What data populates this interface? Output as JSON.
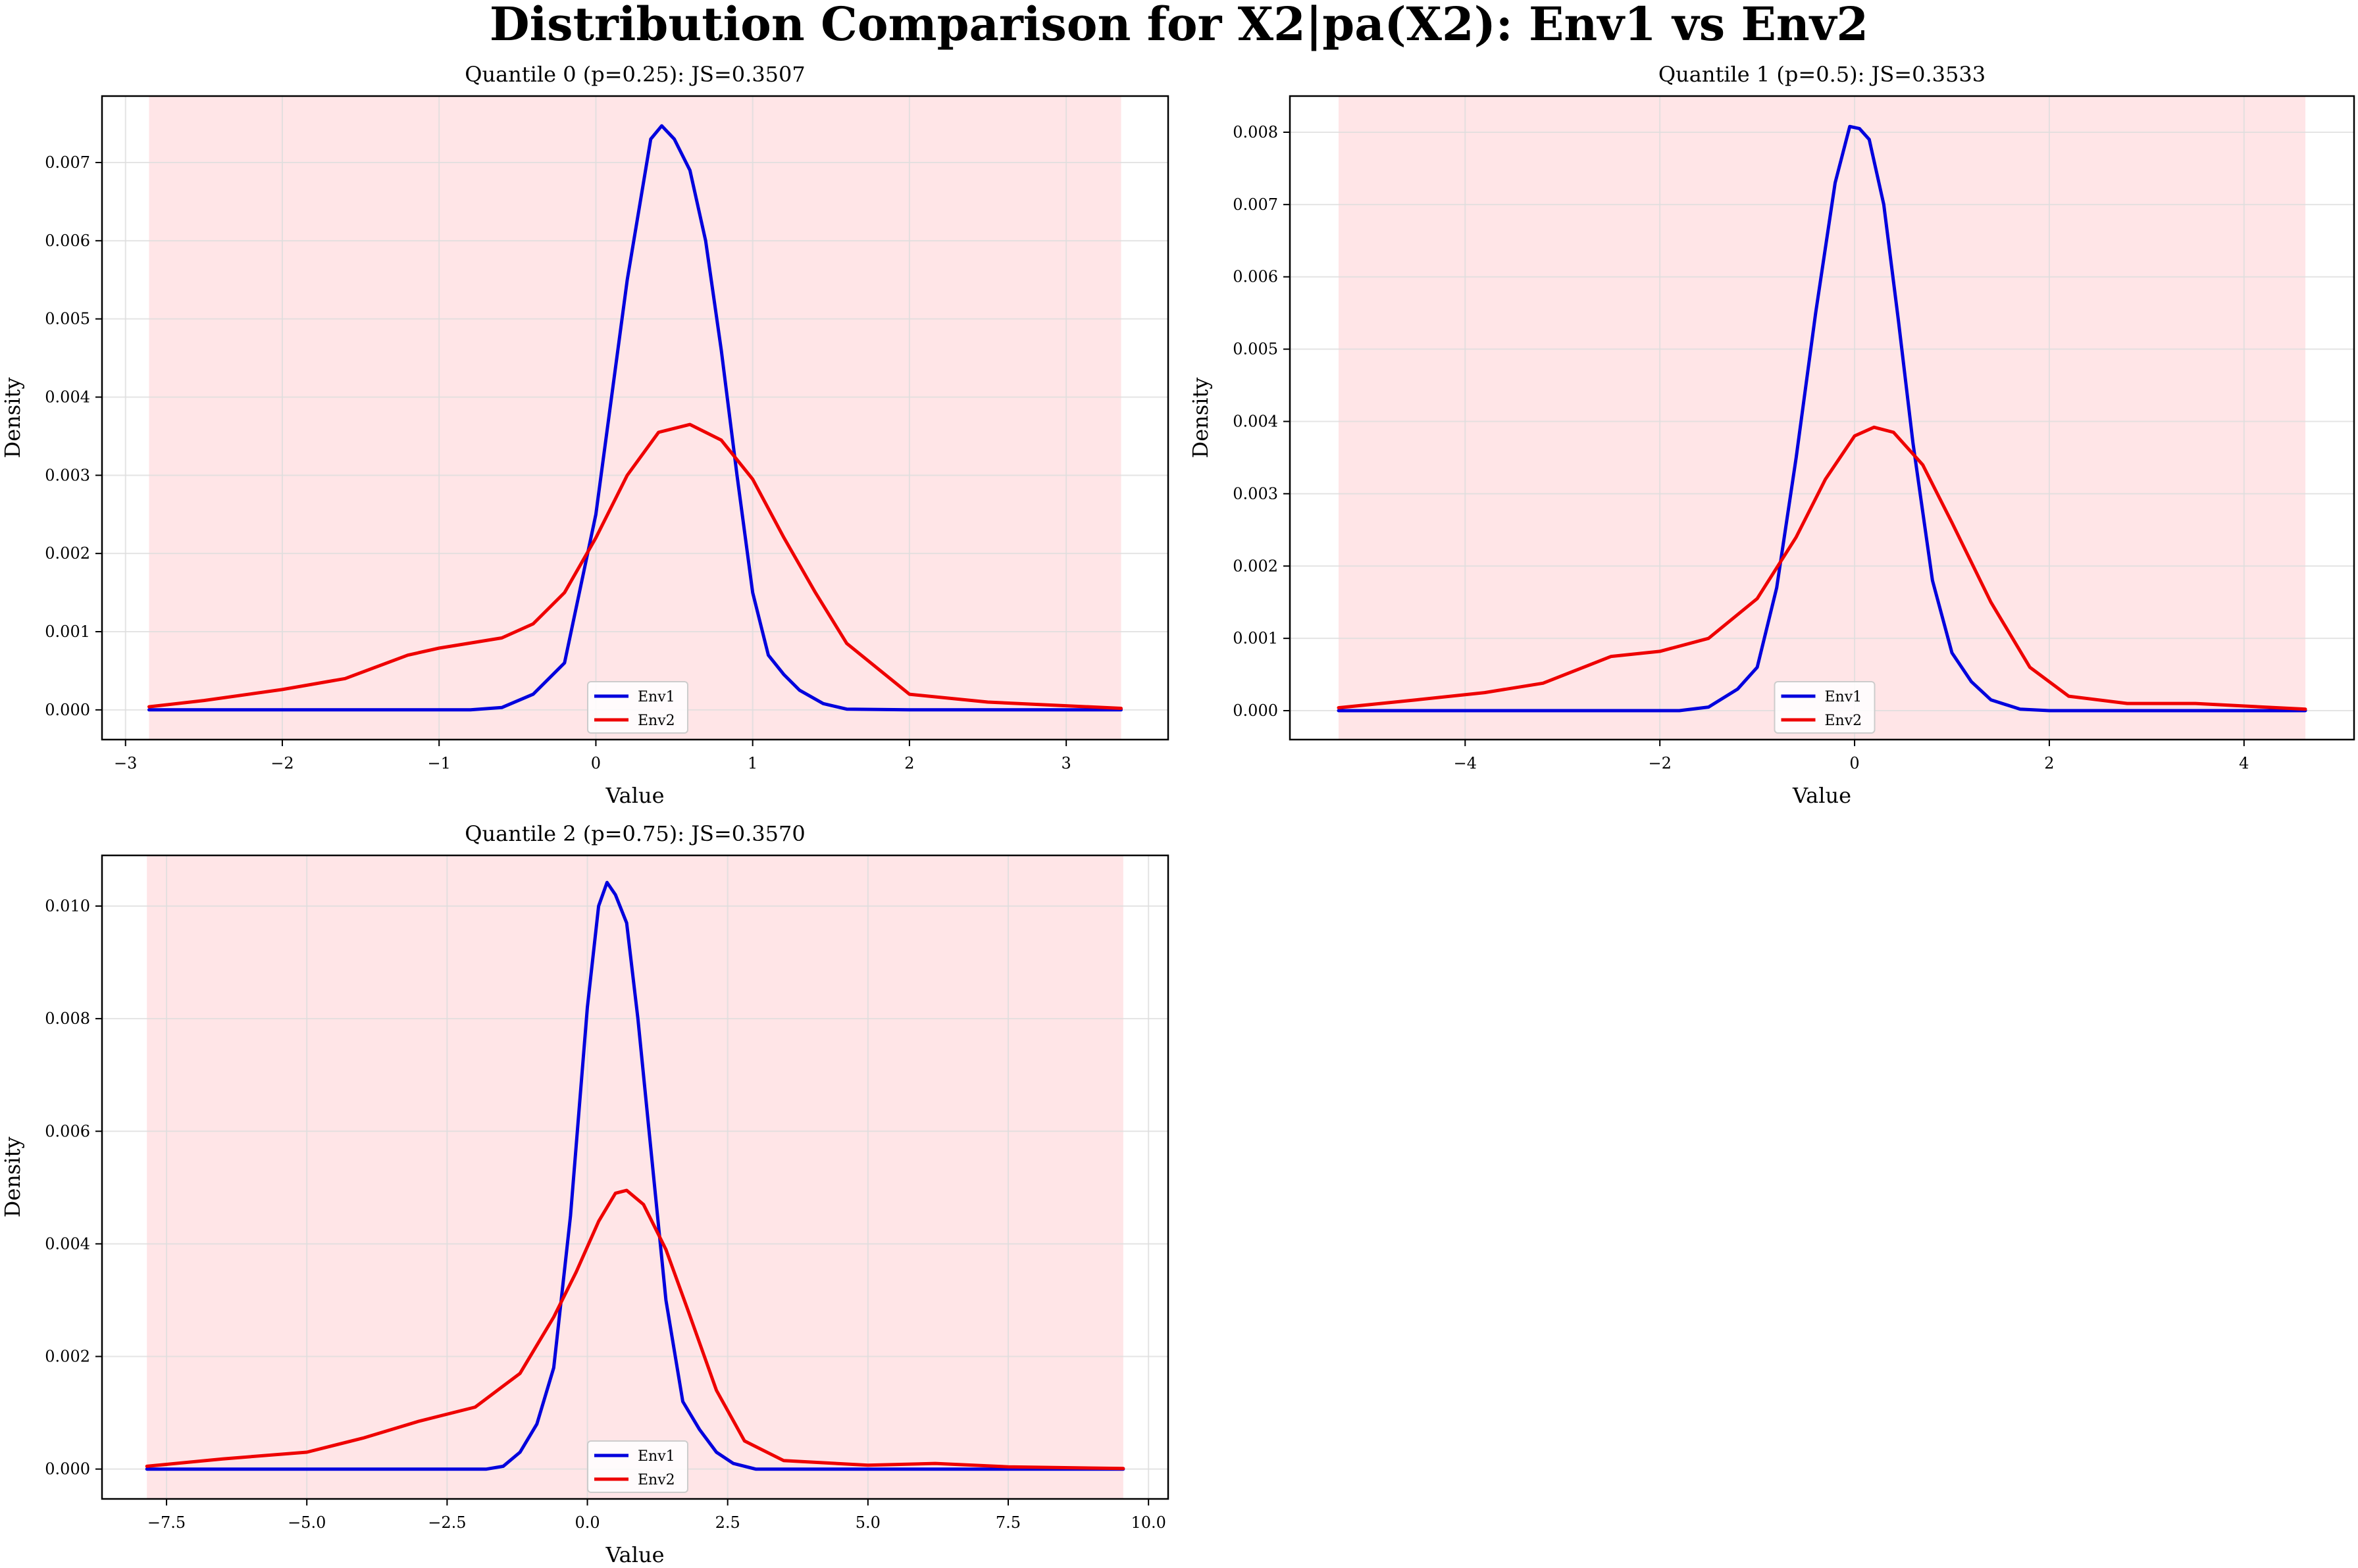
{
  "figure_title": "Distribution Comparison for X2|pa(X2): Env1 vs Env2",
  "colors": {
    "env1": "#0000dd",
    "env2": "#ee0000",
    "shade": "#ffe2e4",
    "grid": "#dddddd"
  },
  "chart_data": [
    {
      "type": "line",
      "title": "Quantile 0 (p=0.25): JS=0.3507",
      "xlabel": "Value",
      "ylabel": "Density",
      "xlim": [
        -3.15,
        3.65
      ],
      "ylim": [
        -0.00038,
        0.00785
      ],
      "shade_range": [
        -2.85,
        3.35
      ],
      "xticks": [
        -3,
        -2,
        -1,
        0,
        1,
        2,
        3
      ],
      "xtick_labels": [
        "−3",
        "−2",
        "−1",
        "0",
        "1",
        "2",
        "3"
      ],
      "yticks": [
        0,
        0.001,
        0.002,
        0.003,
        0.004,
        0.005,
        0.006,
        0.007
      ],
      "ytick_labels": [
        "0.000",
        "0.001",
        "0.002",
        "0.003",
        "0.004",
        "0.005",
        "0.006",
        "0.007"
      ],
      "grid": true,
      "legend": "lower-center",
      "series": [
        {
          "name": "Env1",
          "x": [
            -2.85,
            -0.8,
            -0.6,
            -0.4,
            -0.2,
            0.0,
            0.2,
            0.35,
            0.42,
            0.5,
            0.6,
            0.7,
            0.8,
            0.9,
            1.0,
            1.1,
            1.2,
            1.3,
            1.45,
            1.6,
            2.0,
            3.35
          ],
          "y": [
            0,
            0,
            3e-05,
            0.0002,
            0.0006,
            0.0025,
            0.0055,
            0.0073,
            0.00747,
            0.0073,
            0.0069,
            0.006,
            0.0046,
            0.003,
            0.0015,
            0.0007,
            0.00045,
            0.00025,
            8e-05,
            1e-05,
            0,
            0
          ]
        },
        {
          "name": "Env2",
          "x": [
            -2.85,
            -2.5,
            -2.0,
            -1.6,
            -1.2,
            -1.0,
            -0.6,
            -0.4,
            -0.2,
            0.0,
            0.2,
            0.4,
            0.6,
            0.8,
            1.0,
            1.2,
            1.4,
            1.6,
            2.0,
            2.5,
            3.35
          ],
          "y": [
            4e-05,
            0.00012,
            0.00026,
            0.0004,
            0.0007,
            0.00079,
            0.00092,
            0.0011,
            0.0015,
            0.0022,
            0.003,
            0.00355,
            0.00365,
            0.00345,
            0.00295,
            0.0022,
            0.0015,
            0.00085,
            0.0002,
            0.0001,
            2e-05
          ]
        }
      ]
    },
    {
      "type": "line",
      "title": "Quantile 1 (p=0.5): JS=0.3533",
      "xlabel": "Value",
      "ylabel": "Density",
      "xlim": [
        -5.8,
        5.13
      ],
      "ylim": [
        -0.0004,
        0.0085
      ],
      "shade_range": [
        -5.3,
        4.63
      ],
      "xticks": [
        -4,
        -2,
        0,
        2,
        4
      ],
      "xtick_labels": [
        "−4",
        "−2",
        "0",
        "2",
        "4"
      ],
      "yticks": [
        0,
        0.001,
        0.002,
        0.003,
        0.004,
        0.005,
        0.006,
        0.007,
        0.008
      ],
      "ytick_labels": [
        "0.000",
        "0.001",
        "0.002",
        "0.003",
        "0.004",
        "0.005",
        "0.006",
        "0.007",
        "0.008"
      ],
      "grid": true,
      "legend": "lower-center",
      "series": [
        {
          "name": "Env1",
          "x": [
            -5.3,
            -1.8,
            -1.5,
            -1.2,
            -1.0,
            -0.8,
            -0.6,
            -0.4,
            -0.2,
            -0.05,
            0.05,
            0.15,
            0.3,
            0.45,
            0.6,
            0.8,
            1.0,
            1.2,
            1.4,
            1.7,
            2.0,
            4.63
          ],
          "y": [
            0,
            0,
            5e-05,
            0.0003,
            0.0006,
            0.0017,
            0.0035,
            0.0055,
            0.0073,
            0.00808,
            0.00805,
            0.0079,
            0.007,
            0.0054,
            0.0037,
            0.0018,
            0.0008,
            0.0004,
            0.00015,
            2e-05,
            0,
            0
          ]
        },
        {
          "name": "Env2",
          "x": [
            -5.3,
            -4.5,
            -3.8,
            -3.2,
            -2.5,
            -2.0,
            -1.5,
            -1.0,
            -0.6,
            -0.3,
            0.0,
            0.2,
            0.4,
            0.7,
            1.0,
            1.4,
            1.8,
            2.2,
            2.8,
            3.5,
            4.63
          ],
          "y": [
            4e-05,
            0.00015,
            0.00025,
            0.00038,
            0.00075,
            0.00082,
            0.001,
            0.00155,
            0.0024,
            0.0032,
            0.0038,
            0.00392,
            0.00385,
            0.0034,
            0.0026,
            0.0015,
            0.0006,
            0.0002,
            0.0001,
            0.0001,
            2e-05
          ]
        }
      ]
    },
    {
      "type": "line",
      "title": "Quantile 2 (p=0.75): JS=0.3570",
      "xlabel": "Value",
      "ylabel": "Density",
      "xlim": [
        -8.65,
        10.35
      ],
      "ylim": [
        -0.00053,
        0.0109
      ],
      "shade_range": [
        -7.85,
        9.55
      ],
      "xticks": [
        -7.5,
        -5.0,
        -2.5,
        0.0,
        2.5,
        5.0,
        7.5,
        10.0
      ],
      "xtick_labels": [
        "−7.5",
        "−5.0",
        "−2.5",
        "0.0",
        "2.5",
        "5.0",
        "7.5",
        "10.0"
      ],
      "yticks": [
        0,
        0.002,
        0.004,
        0.006,
        0.008,
        0.01
      ],
      "ytick_labels": [
        "0.000",
        "0.002",
        "0.004",
        "0.006",
        "0.008",
        "0.010"
      ],
      "grid": true,
      "legend": "lower-center",
      "series": [
        {
          "name": "Env1",
          "x": [
            -7.85,
            -1.8,
            -1.5,
            -1.2,
            -0.9,
            -0.6,
            -0.3,
            0.0,
            0.2,
            0.35,
            0.5,
            0.7,
            0.9,
            1.1,
            1.4,
            1.7,
            2.0,
            2.3,
            2.6,
            3.0,
            9.55
          ],
          "y": [
            0,
            0,
            5e-05,
            0.0003,
            0.0008,
            0.0018,
            0.0045,
            0.0082,
            0.01,
            0.01042,
            0.0102,
            0.0097,
            0.008,
            0.006,
            0.003,
            0.0012,
            0.0007,
            0.0003,
            0.0001,
            0,
            0
          ]
        },
        {
          "name": "Env2",
          "x": [
            -7.85,
            -6.5,
            -5.0,
            -4.0,
            -3.0,
            -2.0,
            -1.2,
            -0.6,
            -0.2,
            0.2,
            0.5,
            0.7,
            1.0,
            1.4,
            1.8,
            2.3,
            2.8,
            3.5,
            5.0,
            6.2,
            7.5,
            9.55
          ],
          "y": [
            5e-05,
            0.00018,
            0.0003,
            0.00055,
            0.00085,
            0.0011,
            0.0017,
            0.0027,
            0.0035,
            0.0044,
            0.0049,
            0.00495,
            0.0047,
            0.0039,
            0.0028,
            0.0014,
            0.0005,
            0.00015,
            7e-05,
            0.0001,
            4e-05,
            1e-05
          ]
        }
      ]
    }
  ]
}
